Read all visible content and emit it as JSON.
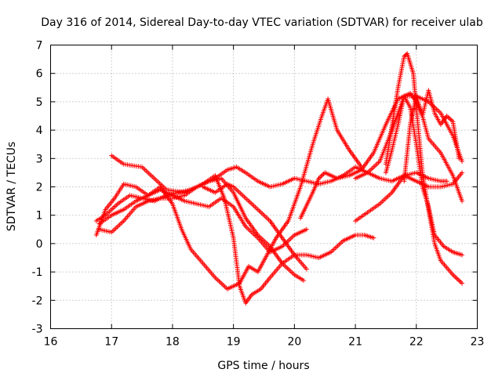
{
  "chart_data": {
    "type": "scatter",
    "title": "Day 316 of 2014, Sidereal Day-to-day VTEC variation (SDTVAR) for receiver ulab",
    "xlabel": "GPS time / hours",
    "ylabel": "SDTVAR / TECUs",
    "xlim": [
      16,
      23
    ],
    "ylim": [
      -3,
      7
    ],
    "x_ticks": [
      "16",
      "17",
      "18",
      "19",
      "20",
      "21",
      "22",
      "23"
    ],
    "y_ticks": [
      "-3",
      "-2",
      "-1",
      "0",
      "1",
      "2",
      "3",
      "4",
      "5",
      "6",
      "7"
    ],
    "grid": true,
    "marker": "+",
    "color": "#ff0000",
    "series": [
      {
        "name": "trace-1",
        "x": [
          17.0,
          17.2,
          17.5,
          17.7,
          17.9,
          18.2,
          18.4,
          18.5,
          18.7,
          18.9,
          19.05,
          19.2,
          19.4,
          19.6,
          19.8,
          20.0,
          20.2,
          20.4,
          20.6,
          20.8,
          21.0,
          21.2,
          21.4,
          21.6,
          21.8,
          22.0,
          22.2,
          22.4,
          22.6,
          22.75
        ],
        "y": [
          3.1,
          2.8,
          2.7,
          2.3,
          1.9,
          1.8,
          2.0,
          2.1,
          2.3,
          2.6,
          2.7,
          2.5,
          2.2,
          2.0,
          2.1,
          2.3,
          2.2,
          2.1,
          2.2,
          2.4,
          2.7,
          2.5,
          2.3,
          2.2,
          2.4,
          2.2,
          2.0,
          2.0,
          2.1,
          2.5
        ]
      },
      {
        "name": "trace-2",
        "x": [
          16.75,
          16.9,
          17.05,
          17.2,
          17.4,
          17.6,
          17.8,
          18.0,
          18.15,
          18.3,
          18.5,
          18.7,
          18.9,
          19.1,
          19.25,
          19.4,
          19.55,
          19.7,
          19.9,
          20.1,
          20.3,
          20.45,
          20.55,
          20.7,
          20.9,
          21.1
        ],
        "y": [
          0.3,
          1.2,
          1.6,
          2.1,
          2.0,
          1.7,
          2.0,
          1.4,
          0.5,
          -0.2,
          -0.7,
          -1.2,
          -1.6,
          -1.4,
          -0.8,
          -1.0,
          -0.4,
          0.2,
          0.8,
          2.0,
          3.5,
          4.5,
          5.1,
          4.0,
          3.3,
          2.7
        ]
      },
      {
        "name": "trace-3",
        "x": [
          16.75,
          16.9,
          17.1,
          17.3,
          17.5,
          17.7,
          17.9,
          18.1,
          18.3,
          18.5,
          18.7,
          18.85,
          19.0,
          19.1,
          19.2,
          19.3,
          19.45,
          19.6,
          19.8,
          20.0,
          20.2,
          20.4,
          20.6,
          20.8,
          21.0,
          21.15,
          21.3
        ],
        "y": [
          0.8,
          1.0,
          1.4,
          1.7,
          1.6,
          1.5,
          1.7,
          1.8,
          1.9,
          2.1,
          2.4,
          1.6,
          0.2,
          -1.5,
          -2.1,
          -1.8,
          -1.6,
          -1.2,
          -0.7,
          -0.4,
          -0.4,
          -0.5,
          -0.3,
          0.1,
          0.3,
          0.3,
          0.2
        ]
      },
      {
        "name": "trace-4",
        "x": [
          16.8,
          17.0,
          17.2,
          17.4,
          17.6,
          17.8,
          18.0,
          18.2,
          18.4,
          18.6,
          18.8,
          19.0,
          19.2,
          19.4,
          19.6,
          19.8,
          20.0,
          20.15
        ],
        "y": [
          0.5,
          0.4,
          0.8,
          1.3,
          1.5,
          1.6,
          1.6,
          1.7,
          2.0,
          2.2,
          2.3,
          1.8,
          0.9,
          0.3,
          -0.1,
          -0.7,
          -1.1,
          -1.3
        ]
      },
      {
        "name": "trace-5",
        "x": [
          16.8,
          17.0,
          17.2,
          17.4,
          17.6,
          17.8,
          18.0,
          18.2,
          18.4,
          18.6,
          18.8,
          19.0,
          19.2,
          19.4,
          19.6,
          19.8,
          20.0,
          20.2
        ],
        "y": [
          0.7,
          1.0,
          1.2,
          1.5,
          1.7,
          1.9,
          1.7,
          1.5,
          1.4,
          1.3,
          1.6,
          1.3,
          0.6,
          0.2,
          -0.3,
          -0.1,
          0.3,
          0.5
        ]
      },
      {
        "name": "trace-6",
        "x": [
          18.5,
          18.7,
          18.9,
          19.0,
          19.2,
          19.4,
          19.6,
          19.8,
          20.0,
          20.2
        ],
        "y": [
          2.0,
          1.8,
          2.1,
          2.0,
          1.6,
          1.2,
          0.8,
          0.2,
          -0.4,
          -0.9
        ]
      },
      {
        "name": "trace-7",
        "x": [
          20.1,
          20.3,
          20.4,
          20.5,
          20.7,
          20.9,
          21.1,
          21.3,
          21.5,
          21.7,
          21.8,
          22.0,
          22.2,
          22.4,
          22.6,
          22.75
        ],
        "y": [
          0.9,
          1.8,
          2.3,
          2.5,
          2.3,
          2.4,
          2.6,
          3.2,
          4.2,
          5.1,
          5.2,
          5.2,
          5.0,
          4.6,
          3.8,
          2.9
        ]
      },
      {
        "name": "trace-8",
        "x": [
          21.0,
          21.2,
          21.4,
          21.6,
          21.8,
          22.0,
          22.2,
          22.4,
          22.5
        ],
        "y": [
          0.8,
          1.1,
          1.4,
          1.8,
          2.4,
          2.5,
          2.3,
          2.2,
          2.2
        ]
      },
      {
        "name": "trace-9",
        "x": [
          21.0,
          21.2,
          21.4,
          21.6,
          21.8,
          21.9,
          22.0,
          22.1,
          22.2,
          22.4,
          22.6,
          22.75
        ],
        "y": [
          2.3,
          2.5,
          2.9,
          4.0,
          5.2,
          5.3,
          5.0,
          4.5,
          3.7,
          3.2,
          2.4,
          1.5
        ]
      },
      {
        "name": "trace-10",
        "x": [
          21.5,
          21.7,
          21.8,
          21.85,
          21.95,
          22.0,
          22.1,
          22.2,
          22.3,
          22.4,
          22.6,
          22.75
        ],
        "y": [
          2.8,
          5.5,
          6.6,
          6.7,
          6.0,
          4.8,
          2.5,
          1.2,
          0.0,
          -0.6,
          -1.1,
          -1.4
        ]
      },
      {
        "name": "trace-11",
        "x": [
          21.5,
          21.6,
          21.7,
          21.8,
          21.9,
          22.0,
          22.1,
          22.2,
          22.3,
          22.45,
          22.6,
          22.75
        ],
        "y": [
          2.5,
          3.3,
          4.2,
          5.2,
          4.8,
          3.5,
          2.0,
          1.3,
          0.3,
          -0.1,
          -0.3,
          -0.4
        ]
      },
      {
        "name": "trace-12",
        "x": [
          21.8,
          21.9,
          22.0,
          22.1,
          22.2,
          22.3,
          22.4,
          22.5,
          22.6,
          22.7
        ],
        "y": [
          2.2,
          4.2,
          5.2,
          4.5,
          5.4,
          4.6,
          4.2,
          4.5,
          4.3,
          3.0
        ]
      }
    ]
  }
}
